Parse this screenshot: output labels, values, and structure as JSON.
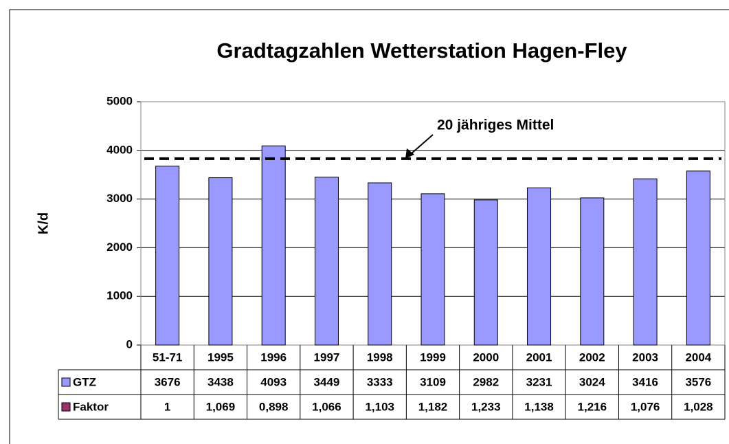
{
  "chart_data": {
    "type": "bar",
    "title": "Gradtagzahlen Wetterstation Hagen-Fley",
    "y_label": "K/d",
    "categories": [
      "51-71",
      "1995",
      "1996",
      "1997",
      "1998",
      "1999",
      "2000",
      "2001",
      "2002",
      "2003",
      "2004"
    ],
    "series": [
      {
        "name": "GTZ",
        "color": "#9999ff",
        "values": [
          3676,
          3438,
          4093,
          3449,
          3333,
          3109,
          2982,
          3231,
          3024,
          3416,
          3576
        ]
      },
      {
        "name": "Faktor",
        "color": "#993366",
        "values": [
          1,
          1.069,
          0.898,
          1.066,
          1.103,
          1.182,
          1.233,
          1.138,
          1.216,
          1.076,
          1.028
        ],
        "value_labels": [
          "1",
          "1,069",
          "0,898",
          "1,066",
          "1,103",
          "1,182",
          "1,233",
          "1,138",
          "1,216",
          "1,076",
          "1,028"
        ]
      }
    ],
    "reference_line": {
      "label": "20 jähriges Mittel",
      "value": 3830
    },
    "ylim": [
      0,
      5000
    ],
    "yticks": [
      0,
      1000,
      2000,
      3000,
      4000,
      5000
    ],
    "grid": true
  }
}
